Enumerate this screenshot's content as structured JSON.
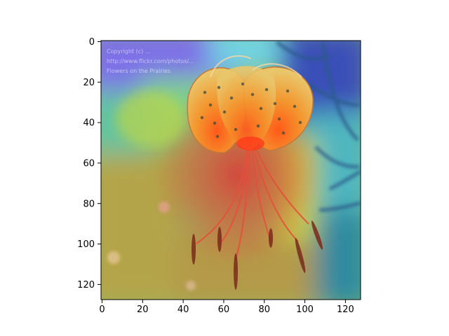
{
  "image": {
    "subject": "tiger lily flower with heatmap overlay",
    "heatmap_colors": [
      "#7a6ce8",
      "#5fd0e0",
      "#6ecf8f",
      "#c9d24a",
      "#d94b3f",
      "#b07a3a",
      "#2e6f8f"
    ],
    "flower_colors": [
      "#f08a2a",
      "#e0442a",
      "#9a4a2a",
      "#7c2a1a"
    ],
    "watermark_lines": [
      "Copyright (c) ...",
      "http://www.flickr.com/photos/...",
      "Flowers on the Prairies"
    ]
  },
  "axes": {
    "x_ticks": [
      "0",
      "20",
      "40",
      "60",
      "80",
      "100",
      "120"
    ],
    "y_ticks": [
      "0",
      "20",
      "40",
      "60",
      "80",
      "100",
      "120"
    ],
    "x_range": [
      0,
      128
    ],
    "y_range": [
      0,
      128
    ],
    "y_inverted": true
  }
}
